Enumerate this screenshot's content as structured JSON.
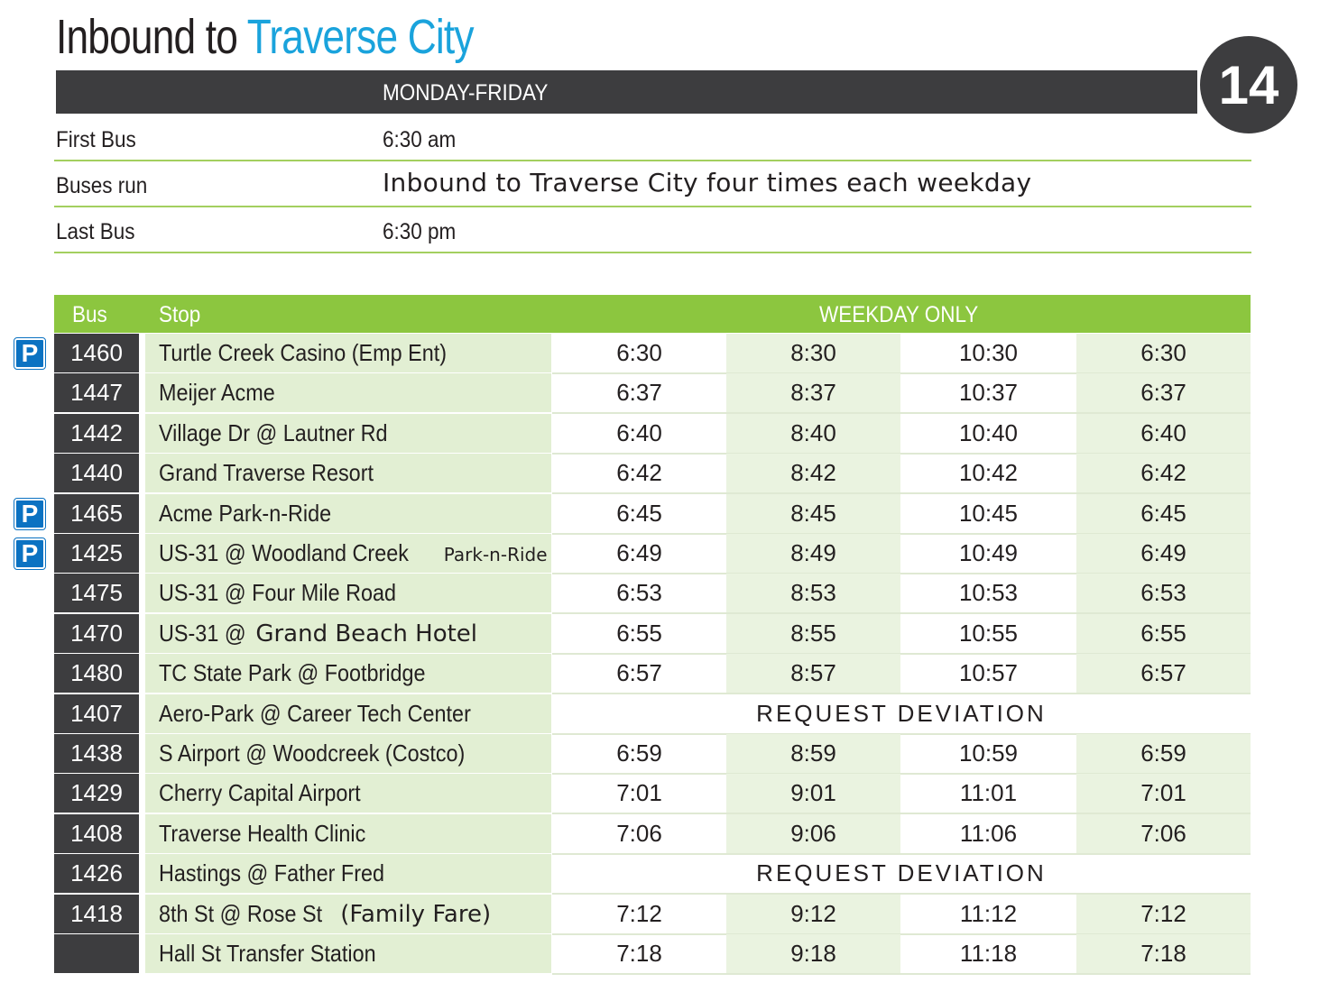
{
  "title": {
    "prefix": "Inbound to ",
    "highlight": "Traverse City"
  },
  "route_number": "14",
  "schedule_header": "MONDAY-FRIDAY",
  "info": [
    {
      "label": "First Bus",
      "value": "6:30 am"
    },
    {
      "label": "Buses run",
      "value": "Inbound to Traverse City four times each weekday"
    },
    {
      "label": "Last Bus",
      "value": "6:30 pm"
    }
  ],
  "table": {
    "headers": {
      "bus": "Bus",
      "stop": "Stop",
      "times": "WEEKDAY ONLY"
    },
    "parking_icon": "P",
    "rows": [
      {
        "bus": "1460",
        "stop": "Turtle Creek Casino (Emp Ent)",
        "times": [
          "6:30",
          "8:30",
          "10:30",
          "6:30"
        ],
        "park": true
      },
      {
        "bus": "1447",
        "stop": "Meijer Acme",
        "times": [
          "6:37",
          "8:37",
          "10:37",
          "6:37"
        ]
      },
      {
        "bus": "1442",
        "stop": "Village Dr @ Lautner Rd",
        "times": [
          "6:40",
          "8:40",
          "10:40",
          "6:40"
        ]
      },
      {
        "bus": "1440",
        "stop": "Grand Traverse Resort",
        "times": [
          "6:42",
          "8:42",
          "10:42",
          "6:42"
        ]
      },
      {
        "bus": "1465",
        "stop": "Acme Park-n-Ride",
        "times": [
          "6:45",
          "8:45",
          "10:45",
          "6:45"
        ],
        "park": true
      },
      {
        "bus": "1425",
        "stop": "US-31 @ Woodland Creek",
        "stop_suffix": "Park-n-Ride",
        "times": [
          "6:49",
          "8:49",
          "10:49",
          "6:49"
        ],
        "park": true
      },
      {
        "bus": "1475",
        "stop": "US-31 @ Four Mile Road",
        "times": [
          "6:53",
          "8:53",
          "10:53",
          "6:53"
        ]
      },
      {
        "bus": "1470",
        "stop": "US-31 @ ",
        "stop_extra": "Grand Beach Hotel",
        "times": [
          "6:55",
          "8:55",
          "10:55",
          "6:55"
        ]
      },
      {
        "bus": "1480",
        "stop": "TC State Park @ Footbridge",
        "times": [
          "6:57",
          "8:57",
          "10:57",
          "6:57"
        ]
      },
      {
        "bus": "1407",
        "stop": "Aero-Park @ Career Tech Center",
        "deviation": "REQUEST DEVIATION"
      },
      {
        "bus": "1438",
        "stop": "S Airport @ Woodcreek (Costco)",
        "times": [
          "6:59",
          "8:59",
          "10:59",
          "6:59"
        ]
      },
      {
        "bus": "1429",
        "stop": "Cherry Capital Airport",
        "times": [
          "7:01",
          "9:01",
          "11:01",
          "7:01"
        ]
      },
      {
        "bus": "1408",
        "stop": "Traverse Health Clinic",
        "times": [
          "7:06",
          "9:06",
          "11:06",
          "7:06"
        ]
      },
      {
        "bus": "1426",
        "stop": "Hastings @ Father Fred",
        "deviation": "REQUEST DEVIATION"
      },
      {
        "bus": "1418",
        "stop": "8th St @ Rose St ",
        "stop_extra": "(Family Fare)",
        "times": [
          "7:12",
          "9:12",
          "11:12",
          "7:12"
        ]
      },
      {
        "bus": "",
        "stop": "Hall St Transfer Station",
        "times": [
          "7:18",
          "9:18",
          "11:18",
          "7:18"
        ]
      }
    ]
  }
}
